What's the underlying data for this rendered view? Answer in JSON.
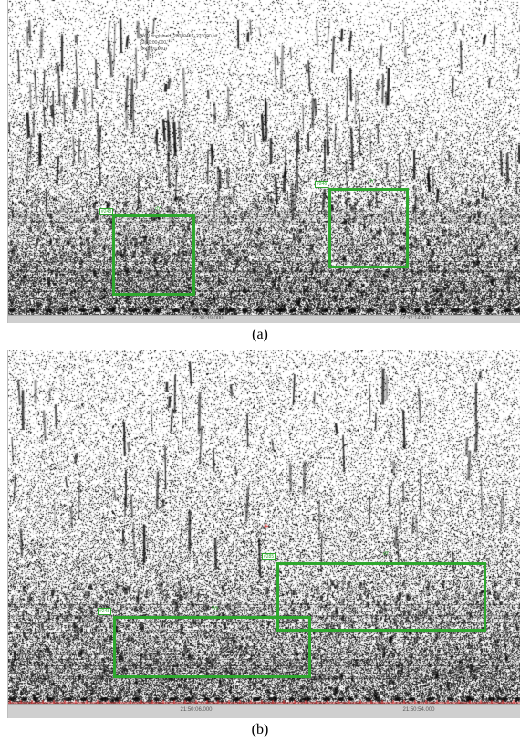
{
  "panel_a": {
    "file_info": {
      "filename": "NY_LongIsland_20080415_223000.aif",
      "start_time": "22:30:00.000",
      "offset": "(0:15:00.000)"
    },
    "time_ticks": [
      "22:30:39.000",
      "22:32:14.000"
    ],
    "annotation_boxes": [
      {
        "label": "#248",
        "tag": "dY"
      },
      {
        "label": "#246",
        "tag": "dY"
      }
    ]
  },
  "panel_b": {
    "time_ticks": [
      "21:50:06.000",
      "21:50:54.000"
    ],
    "annotation_boxes": [
      {
        "label": "#248",
        "tag": "Wh"
      },
      {
        "label": "#285",
        "tag": "dY"
      }
    ]
  },
  "captions": {
    "a": "(a)",
    "b": "(b)"
  },
  "colors": {
    "box": "#2ea82e",
    "cursor": "#dd3333",
    "axis_bar": "#cfcfcf"
  }
}
